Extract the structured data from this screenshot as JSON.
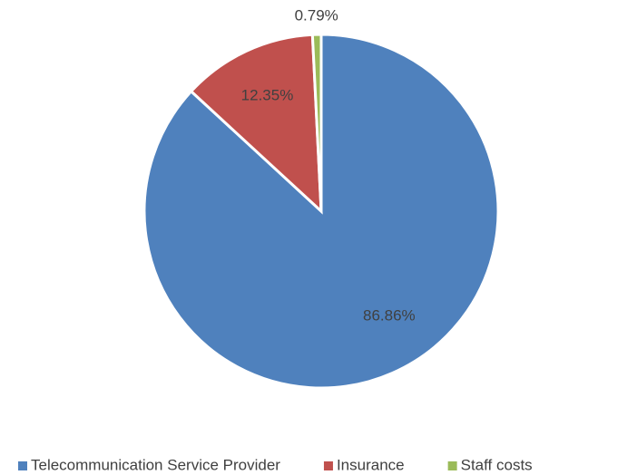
{
  "chart_data": {
    "type": "pie",
    "categories": [
      "Telecommunication Service Provider",
      "Insurance",
      "Staff costs"
    ],
    "values": [
      86.86,
      12.35,
      0.79
    ],
    "value_labels": [
      "86.86%",
      "12.35%",
      "0.79%"
    ],
    "colors": [
      "#4f81bd",
      "#c0504d",
      "#9bbb59"
    ],
    "legend": "bottom"
  }
}
